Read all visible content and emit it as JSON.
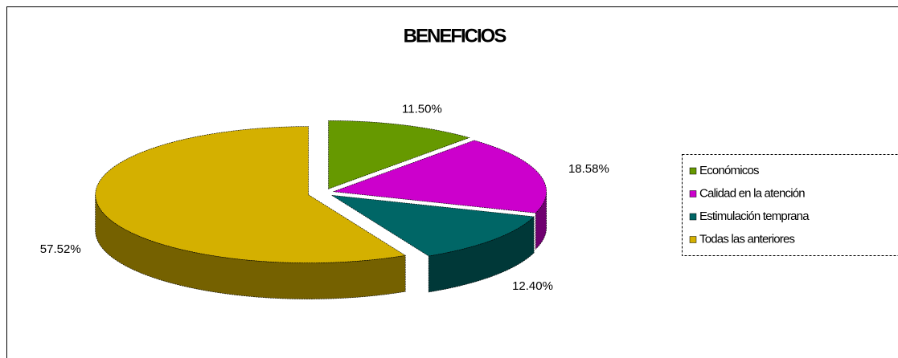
{
  "chart_data": {
    "type": "pie3d",
    "title": "BENEFICIOS",
    "categories": [
      "Económicos",
      "Calidad en la atención",
      "Estimulación temprana",
      "Todas las anteriores"
    ],
    "values": [
      11.5,
      18.58,
      12.4,
      57.52
    ],
    "value_labels": [
      "11.50%",
      "18.58%",
      "12.40%",
      "57.52%"
    ],
    "colors": [
      "#669900",
      "#cc00cc",
      "#006666",
      "#d4b000"
    ],
    "legend": "right"
  }
}
